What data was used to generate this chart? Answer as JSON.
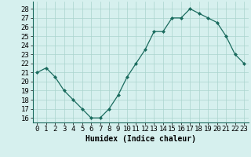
{
  "x": [
    0,
    1,
    2,
    3,
    4,
    5,
    6,
    7,
    8,
    9,
    10,
    11,
    12,
    13,
    14,
    15,
    16,
    17,
    18,
    19,
    20,
    21,
    22,
    23
  ],
  "y": [
    21,
    21.5,
    20.5,
    19,
    18,
    17,
    16,
    16,
    17,
    18.5,
    20.5,
    22,
    23.5,
    25.5,
    25.5,
    27,
    27,
    28,
    27.5,
    27,
    26.5,
    25,
    23,
    22
  ],
  "line_color": "#1a6b5e",
  "marker": "D",
  "marker_size": 2,
  "bg_color": "#d6f0ee",
  "grid_color": "#aad4ce",
  "xlabel": "Humidex (Indice chaleur)",
  "xlim": [
    -0.5,
    23.5
  ],
  "ylim_min": 15.5,
  "ylim_max": 28.8,
  "yticks": [
    16,
    17,
    18,
    19,
    20,
    21,
    22,
    23,
    24,
    25,
    26,
    27,
    28
  ],
  "xticks": [
    0,
    1,
    2,
    3,
    4,
    5,
    6,
    7,
    8,
    9,
    10,
    11,
    12,
    13,
    14,
    15,
    16,
    17,
    18,
    19,
    20,
    21,
    22,
    23
  ],
  "xlabel_fontsize": 7,
  "tick_fontsize": 6.5
}
